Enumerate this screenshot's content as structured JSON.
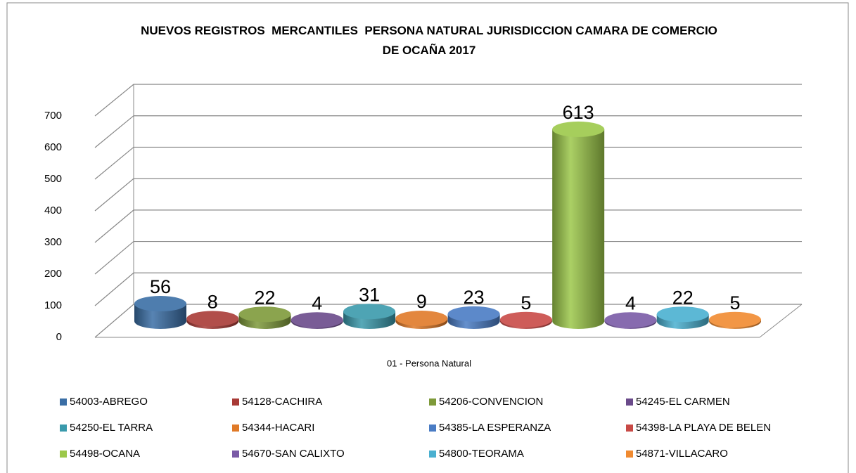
{
  "chart_data": {
    "type": "bar",
    "title": "NUEVOS REGISTROS  MERCANTILES  PERSONA NATURAL JURISDICCION CAMARA DE COMERCIO DE OCAÑA 2017",
    "categories": [
      "01 - Persona Natural"
    ],
    "series": [
      {
        "name": "54003-ABREGO",
        "color": "#3a6ea5",
        "values": [
          56
        ]
      },
      {
        "name": "54128-CACHIRA",
        "color": "#a83a36",
        "values": [
          8
        ]
      },
      {
        "name": "54206-CONVENCION",
        "color": "#7e9a3a",
        "values": [
          22
        ]
      },
      {
        "name": "54245-EL CARMEN",
        "color": "#6a4a8a",
        "values": [
          4
        ]
      },
      {
        "name": "54250-EL TARRA",
        "color": "#3a9aac",
        "values": [
          31
        ]
      },
      {
        "name": "54344-HACARI",
        "color": "#e07a28",
        "values": [
          9
        ]
      },
      {
        "name": "54385-LA ESPERANZA",
        "color": "#4a7cc4",
        "values": [
          23
        ]
      },
      {
        "name": "54398-LA PLAYA DE BELEN",
        "color": "#c84a46",
        "values": [
          5
        ]
      },
      {
        "name": "54498-OCANA",
        "color": "#9cc84a",
        "values": [
          613
        ]
      },
      {
        "name": "54670-SAN CALIXTO",
        "color": "#7a5aa6",
        "values": [
          4
        ]
      },
      {
        "name": "54800-TEORAMA",
        "color": "#4ab0d0",
        "values": [
          22
        ]
      },
      {
        "name": "54871-VILLACARO",
        "color": "#f08a30",
        "values": [
          5
        ]
      }
    ],
    "ylim": [
      0,
      700
    ],
    "yticks": [
      0,
      100,
      200,
      300,
      400,
      500,
      600,
      700
    ],
    "grid": true
  }
}
